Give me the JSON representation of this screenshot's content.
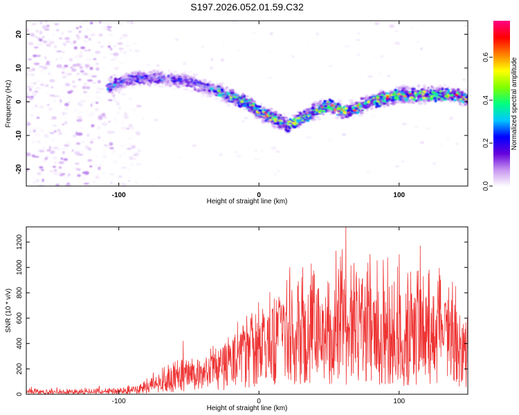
{
  "title": "S197.2026.052.01.59.C32",
  "chart_data": [
    {
      "type": "heatmap",
      "xlabel": "Height of straight line (km)",
      "ylabel": "Frequency (Hz)",
      "xlim": [
        -166,
        149
      ],
      "ylim": [
        -25,
        24
      ],
      "xticks": [
        -100,
        0,
        100
      ],
      "yticks": [
        -20,
        -10,
        0,
        10,
        20
      ],
      "grid": false,
      "colorbar": {
        "label": "Normalized spectral amplitude",
        "range": [
          0.0,
          0.77
        ],
        "ticks": [
          0.0,
          0.2,
          0.4,
          0.6
        ],
        "colormap": [
          "#ffffff",
          "#c896f0",
          "#6400dc",
          "#0000ff",
          "#00c8ff",
          "#00ff80",
          "#80ff00",
          "#ffff00",
          "#ff8000",
          "#ff0000",
          "#ff0080"
        ]
      },
      "ridge": {
        "x": [
          -110,
          -90,
          -70,
          -50,
          -30,
          -10,
          0,
          10,
          20,
          30,
          40,
          50,
          60,
          70,
          80,
          100,
          120,
          140,
          149
        ],
        "freq": [
          4,
          7,
          7,
          6,
          3,
          0,
          -3,
          -5,
          -7,
          -5,
          -3,
          -1,
          -3,
          -2,
          0,
          2,
          2,
          2,
          1
        ]
      }
    },
    {
      "type": "line",
      "xlabel": "Height of straight line (km)",
      "ylabel": "SNR (10 * v/v)",
      "xlim": [
        -166,
        149
      ],
      "ylim": [
        0,
        1320
      ],
      "xticks": [
        -100,
        0,
        100
      ],
      "yticks": [
        0,
        200,
        400,
        600,
        800,
        1000,
        1200
      ],
      "grid": false,
      "color": "#ee3333",
      "envelope": {
        "x": [
          -166,
          -120,
          -100,
          -90,
          -80,
          -70,
          -60,
          -50,
          -40,
          -30,
          -20,
          -10,
          0,
          10,
          20,
          30,
          40,
          50,
          60,
          70,
          80,
          90,
          100,
          110,
          120,
          130,
          140,
          149
        ],
        "upper": [
          50,
          50,
          60,
          80,
          130,
          200,
          250,
          280,
          300,
          400,
          500,
          600,
          700,
          800,
          900,
          950,
          1000,
          1050,
          1100,
          1100,
          1080,
          1050,
          1050,
          1050,
          1000,
          950,
          850,
          750
        ],
        "mean": [
          20,
          22,
          25,
          35,
          55,
          80,
          110,
          140,
          160,
          200,
          250,
          300,
          350,
          400,
          430,
          450,
          470,
          480,
          500,
          500,
          480,
          450,
          430,
          420,
          400,
          380,
          350,
          300
        ]
      },
      "peaks": [
        {
          "x": 62,
          "y": 1320
        },
        {
          "x": 115,
          "y": 1170
        },
        {
          "x": 55,
          "y": 1130
        },
        {
          "x": 22,
          "y": 1000
        },
        {
          "x": -54,
          "y": 420
        }
      ]
    }
  ]
}
